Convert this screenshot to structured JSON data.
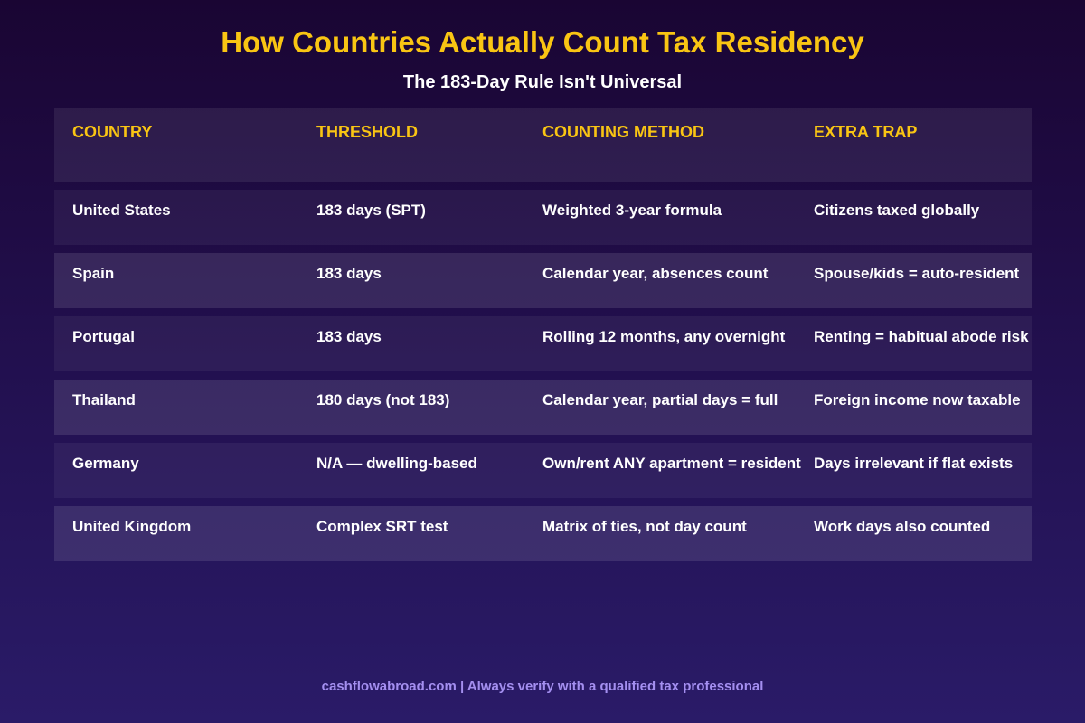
{
  "title": "How Countries Actually Count Tax Residency",
  "subtitle": "The 183-Day Rule Isn't Universal",
  "columns": [
    "COUNTRY",
    "THRESHOLD",
    "COUNTING METHOD",
    "EXTRA TRAP"
  ],
  "rows": [
    [
      "United States",
      "183 days (SPT)",
      "Weighted 3-year formula",
      "Citizens taxed globally"
    ],
    [
      "Spain",
      "183 days",
      "Calendar year, absences count",
      "Spouse/kids = auto-resident"
    ],
    [
      "Portugal",
      "183 days",
      "Rolling 12 months, any overnight",
      "Renting = habitual abode risk"
    ],
    [
      "Thailand",
      "180 days (not 183)",
      "Calendar year, partial days = full",
      "Foreign income now taxable"
    ],
    [
      "Germany",
      "N/A — dwelling-based",
      "Own/rent ANY apartment = resident",
      "Days irrelevant if flat exists"
    ],
    [
      "United Kingdom",
      "Complex SRT test",
      "Matrix of ties, not day count",
      "Work days also counted"
    ]
  ],
  "footer": "cashflowabroad.com  |  Always verify with a qualified tax professional",
  "colors": {
    "accent": "#f9c513",
    "footer": "#a48ff0",
    "background_top": "#1a0533",
    "background_bottom": "#2a1b68"
  }
}
